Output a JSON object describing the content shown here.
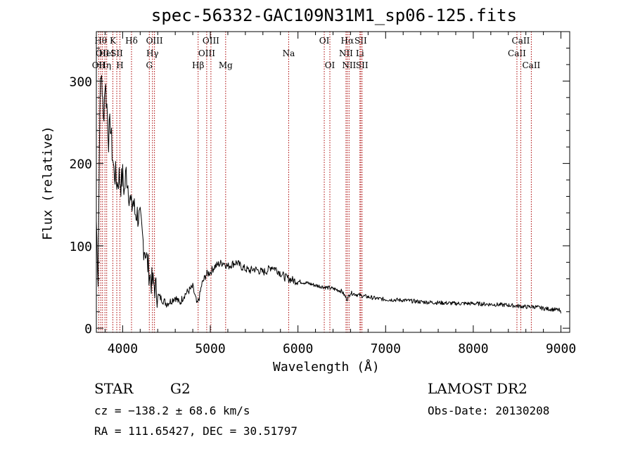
{
  "header": {
    "title": "spec-56332-GAC109N31M1_sp06-125.fits"
  },
  "footer": {
    "class": "STAR",
    "subclass": "G2",
    "survey": "LAMOST DR2",
    "cz": "cz = −138.2 ± 68.6 km/s",
    "obs_date": "Obs-Date: 20130208",
    "radec": "RA = 111.65427, DEC =  30.51797"
  },
  "chart_data": {
    "type": "line",
    "title": "spec-56332-GAC109N31M1_sp06-125.fits",
    "xlabel": "Wavelength (Å)",
    "ylabel": "Flux (relative)",
    "xlim": [
      3700,
      9100
    ],
    "ylim": [
      -5,
      360
    ],
    "xticks": [
      4000,
      5000,
      6000,
      7000,
      8000,
      9000
    ],
    "yticks": [
      0,
      100,
      200,
      300
    ],
    "series": [
      {
        "x": [
          3700,
          3720,
          3740,
          3760,
          3780,
          3800,
          3820,
          3840,
          3860,
          3880,
          3900,
          3920,
          3940,
          3960,
          3980,
          4000,
          4020,
          4040,
          4060,
          4080,
          4100,
          4120,
          4140,
          4160,
          4180,
          4200,
          4220,
          4240,
          4260,
          4280,
          4300,
          4320,
          4340,
          4360,
          4380,
          4400,
          4450,
          4500,
          4550,
          4600,
          4650,
          4700,
          4750,
          4800,
          4850,
          4880,
          4900,
          4950,
          5000,
          5050,
          5100,
          5150,
          5200,
          5250,
          5300,
          5350,
          5400,
          5450,
          5500,
          5550,
          5600,
          5650,
          5700,
          5750,
          5800,
          5850,
          5900,
          5950,
          6000,
          6100,
          6200,
          6300,
          6400,
          6500,
          6560,
          6600,
          6700,
          6800,
          6900,
          7000,
          7200,
          7400,
          7600,
          7800,
          8000,
          8200,
          8400,
          8500,
          8600,
          8700,
          8800,
          8900,
          8980,
          9000
        ],
        "y": [
          130,
          60,
          280,
          310,
          250,
          300,
          270,
          230,
          250,
          215,
          190,
          185,
          175,
          185,
          175,
          185,
          165,
          190,
          175,
          160,
          145,
          155,
          140,
          140,
          135,
          130,
          115,
          100,
          95,
          80,
          70,
          58,
          55,
          52,
          47,
          40,
          35,
          30,
          33,
          38,
          30,
          40,
          45,
          50,
          28,
          40,
          52,
          65,
          68,
          75,
          78,
          80,
          75,
          78,
          80,
          75,
          72,
          70,
          72,
          70,
          68,
          70,
          75,
          72,
          67,
          62,
          60,
          58,
          57,
          55,
          52,
          50,
          48,
          45,
          35,
          43,
          40,
          38,
          36,
          35,
          34,
          32,
          31,
          30,
          30,
          29,
          28,
          27,
          26,
          26,
          24,
          23,
          22,
          18
        ]
      }
    ],
    "lines": [
      {
        "x": 3727,
        "label": "OII",
        "row": 3
      },
      {
        "x": 3750,
        "label": "Hθ",
        "row": 1
      },
      {
        "x": 3770,
        "label": "OII",
        "row": 2
      },
      {
        "x": 3798,
        "label": "Hη",
        "row": 3
      },
      {
        "x": 3818,
        "label": "HeI",
        "row": 2
      },
      {
        "x": 3888,
        "label": "K",
        "row": 1
      },
      {
        "x": 3933,
        "label": "SII",
        "row": 2
      },
      {
        "x": 3969,
        "label": "H",
        "row": 3
      },
      {
        "x": 4101,
        "label": "Hδ",
        "row": 1
      },
      {
        "x": 4304,
        "label": "G",
        "row": 3
      },
      {
        "x": 4340,
        "label": "Hγ",
        "row": 2
      },
      {
        "x": 4363,
        "label": "OIII",
        "row": 1
      },
      {
        "x": 4861,
        "label": "Hβ",
        "row": 3
      },
      {
        "x": 4959,
        "label": "OIII",
        "row": 2
      },
      {
        "x": 5007,
        "label": "OIII",
        "row": 1
      },
      {
        "x": 5175,
        "label": "Mg",
        "row": 3
      },
      {
        "x": 5894,
        "label": "Na",
        "row": 2
      },
      {
        "x": 6300,
        "label": "OI",
        "row": 1
      },
      {
        "x": 6364,
        "label": "OI",
        "row": 3
      },
      {
        "x": 6548,
        "label": "NII",
        "row": 2
      },
      {
        "x": 6563,
        "label": "Hα",
        "row": 1
      },
      {
        "x": 6583,
        "label": "NII",
        "row": 3
      },
      {
        "x": 6707,
        "label": "Li",
        "row": 2
      },
      {
        "x": 6716,
        "label": "SII",
        "row": 1
      },
      {
        "x": 6731,
        "label": "SII",
        "row": 3
      },
      {
        "x": 8498,
        "label": "CaII",
        "row": 2
      },
      {
        "x": 8542,
        "label": "CaII",
        "row": 1
      },
      {
        "x": 8662,
        "label": "CaII",
        "row": 3
      }
    ],
    "grid": false,
    "line_color": "#aa0000"
  }
}
